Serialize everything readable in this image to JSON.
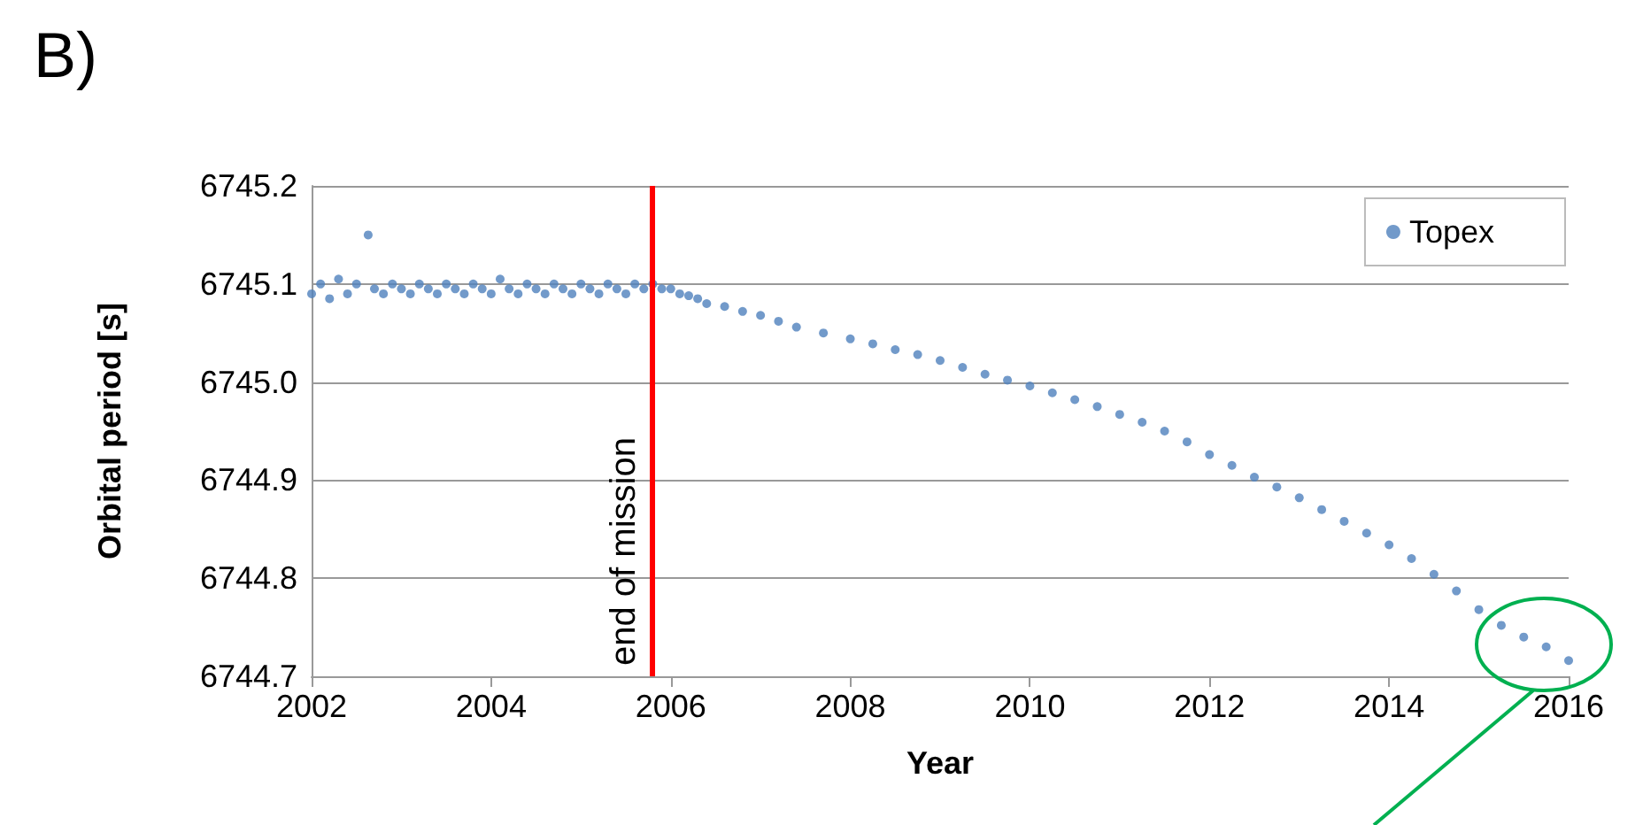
{
  "chart_data": {
    "type": "scatter",
    "title": "B)",
    "xlabel": "Year",
    "ylabel": "Orbital period [s]",
    "xlim": [
      2002,
      2016
    ],
    "xticks": [
      2002,
      2004,
      2006,
      2008,
      2010,
      2012,
      2014,
      2016
    ],
    "ylim": [
      6744.7,
      6745.2
    ],
    "yticks": [
      {
        "value": 6744.7,
        "label": "6744.7"
      },
      {
        "value": 6744.8,
        "label": "6744.8"
      },
      {
        "value": 6744.9,
        "label": "6744.9"
      },
      {
        "value": 6745.0,
        "label": "6745.0"
      },
      {
        "value": 6745.1,
        "label": "6745.1"
      },
      {
        "value": 6745.2,
        "label": "6745.2"
      }
    ],
    "grid": "y",
    "legend": "top right",
    "marker": "circle",
    "series": [
      {
        "name": "Topex",
        "color": "#4f81bd",
        "x": [
          2002.0,
          2002.1,
          2002.2,
          2002.3,
          2002.4,
          2002.5,
          2002.63,
          2002.7,
          2002.8,
          2002.9,
          2003.0,
          2003.1,
          2003.2,
          2003.3,
          2003.4,
          2003.5,
          2003.6,
          2003.7,
          2003.8,
          2003.9,
          2004.0,
          2004.1,
          2004.2,
          2004.3,
          2004.4,
          2004.5,
          2004.6,
          2004.7,
          2004.8,
          2004.9,
          2005.0,
          2005.1,
          2005.2,
          2005.3,
          2005.4,
          2005.5,
          2005.6,
          2005.7,
          2005.8,
          2005.9,
          2006.0,
          2006.1,
          2006.2,
          2006.3,
          2006.4,
          2006.6,
          2006.8,
          2007.0,
          2007.2,
          2007.4,
          2007.7,
          2008.0,
          2008.25,
          2008.5,
          2008.75,
          2009.0,
          2009.25,
          2009.5,
          2009.75,
          2010.0,
          2010.25,
          2010.5,
          2010.75,
          2011.0,
          2011.25,
          2011.5,
          2011.75,
          2012.0,
          2012.25,
          2012.5,
          2012.75,
          2013.0,
          2013.25,
          2013.5,
          2013.75,
          2014.0,
          2014.25,
          2014.5,
          2014.75,
          2015.0,
          2015.25,
          2015.5,
          2015.75,
          2016.0
        ],
        "values": [
          6745.09,
          6745.1,
          6745.085,
          6745.105,
          6745.09,
          6745.1,
          6745.15,
          6745.095,
          6745.09,
          6745.1,
          6745.095,
          6745.09,
          6745.1,
          6745.095,
          6745.09,
          6745.1,
          6745.095,
          6745.09,
          6745.1,
          6745.095,
          6745.09,
          6745.105,
          6745.095,
          6745.09,
          6745.1,
          6745.095,
          6745.09,
          6745.1,
          6745.095,
          6745.09,
          6745.1,
          6745.095,
          6745.09,
          6745.1,
          6745.095,
          6745.09,
          6745.1,
          6745.095,
          6745.1,
          6745.095,
          6745.095,
          6745.09,
          6745.088,
          6745.085,
          6745.08,
          6745.077,
          6745.072,
          6745.068,
          6745.062,
          6745.056,
          6745.05,
          6745.044,
          6745.039,
          6745.033,
          6745.028,
          6745.022,
          6745.015,
          6745.008,
          6745.002,
          6744.996,
          6744.989,
          6744.982,
          6744.975,
          6744.967,
          6744.959,
          6744.95,
          6744.939,
          6744.926,
          6744.915,
          6744.903,
          6744.893,
          6744.882,
          6744.87,
          6744.858,
          6744.846,
          6744.834,
          6744.82,
          6744.804,
          6744.787,
          6744.768,
          6744.752,
          6744.74,
          6744.73,
          6744.716
        ]
      }
    ],
    "ref_lines": [
      {
        "axis": "x",
        "value": 2005.8,
        "label": "end of mission",
        "color": "#ff0000"
      }
    ]
  }
}
